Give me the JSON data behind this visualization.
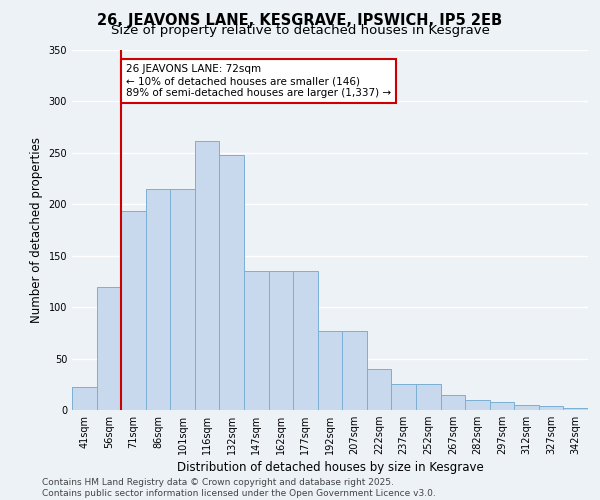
{
  "title1": "26, JEAVONS LANE, KESGRAVE, IPSWICH, IP5 2EB",
  "title2": "Size of property relative to detached houses in Kesgrave",
  "xlabel": "Distribution of detached houses by size in Kesgrave",
  "ylabel": "Number of detached properties",
  "categories": [
    "41sqm",
    "56sqm",
    "71sqm",
    "86sqm",
    "101sqm",
    "116sqm",
    "132sqm",
    "147sqm",
    "162sqm",
    "177sqm",
    "192sqm",
    "207sqm",
    "222sqm",
    "237sqm",
    "252sqm",
    "267sqm",
    "282sqm",
    "297sqm",
    "312sqm",
    "327sqm",
    "342sqm"
  ],
  "values": [
    22,
    120,
    193,
    215,
    215,
    262,
    248,
    135,
    135,
    135,
    77,
    77,
    40,
    25,
    25,
    15,
    10,
    8,
    5,
    4,
    2
  ],
  "bar_color": "#c8d9ed",
  "bar_edge_color": "#7aafd4",
  "red_line_index": 2,
  "annotation_text": "26 JEAVONS LANE: 72sqm\n← 10% of detached houses are smaller (146)\n89% of semi-detached houses are larger (1,337) →",
  "annotation_box_facecolor": "#ffffff",
  "annotation_box_edgecolor": "#cc0000",
  "ylim": [
    0,
    350
  ],
  "yticks": [
    0,
    50,
    100,
    150,
    200,
    250,
    300,
    350
  ],
  "footer_text": "Contains HM Land Registry data © Crown copyright and database right 2025.\nContains public sector information licensed under the Open Government Licence v3.0.",
  "bg_color": "#edf2f7",
  "plot_bg_color": "#edf2f7",
  "grid_color": "#ffffff",
  "title_fontsize": 10.5,
  "subtitle_fontsize": 9.5,
  "tick_fontsize": 7,
  "label_fontsize": 8.5,
  "footer_fontsize": 6.5,
  "red_line_color": "#cc0000"
}
